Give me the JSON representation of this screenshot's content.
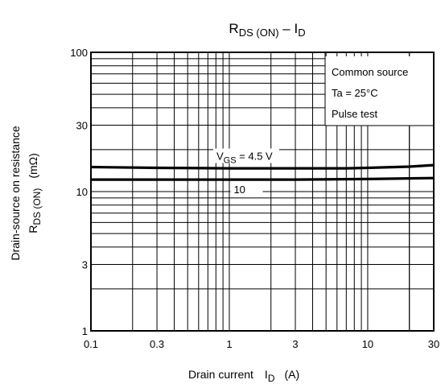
{
  "chart_data": {
    "type": "line",
    "title": {
      "main": "R",
      "sub": "DS (ON)",
      "sep": " – ",
      "main2": "I",
      "sub2": "D"
    },
    "xlabel": {
      "text": "Drain current",
      "sym": "I",
      "sub": "D",
      "unit": "(A)"
    },
    "ylabel": {
      "line1": "Drain-source on resistance",
      "line2_sym": "R",
      "line2_sub": "DS (ON)",
      "line2_unit": "(mΩ)"
    },
    "x_scale": "log",
    "y_scale": "log",
    "xlim": [
      0.1,
      30
    ],
    "ylim": [
      1,
      100
    ],
    "x_ticks": [
      {
        "v": 0.1,
        "label": "0.1"
      },
      {
        "v": 0.3,
        "label": "0.3"
      },
      {
        "v": 1,
        "label": "1"
      },
      {
        "v": 3,
        "label": "3"
      },
      {
        "v": 10,
        "label": "10"
      },
      {
        "v": 30,
        "label": "30"
      }
    ],
    "y_ticks": [
      {
        "v": 1,
        "label": "1"
      },
      {
        "v": 3,
        "label": "3"
      },
      {
        "v": 10,
        "label": "10"
      },
      {
        "v": 30,
        "label": "30"
      },
      {
        "v": 100,
        "label": "100"
      }
    ],
    "grid": true,
    "notes": [
      "Common source",
      "Ta = 25°C",
      "Pulse test"
    ],
    "series": [
      {
        "name": "4.5 V",
        "label": {
          "pre": "V",
          "sub": "GS",
          "post": " = 4.5 V"
        },
        "x": [
          0.1,
          0.3,
          1,
          3,
          7,
          10,
          20,
          30
        ],
        "y": [
          15,
          14.8,
          14.7,
          14.7,
          14.7,
          14.8,
          15.1,
          15.5
        ]
      },
      {
        "name": "10",
        "label": {
          "pre": "10",
          "sub": "",
          "post": ""
        },
        "x": [
          0.1,
          0.3,
          1,
          3,
          10,
          30
        ],
        "y": [
          12.2,
          12.2,
          12.2,
          12.2,
          12.3,
          12.5
        ]
      }
    ]
  }
}
